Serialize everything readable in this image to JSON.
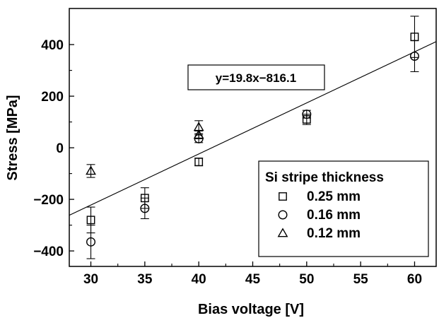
{
  "chart_data": {
    "type": "scatter",
    "xlabel": "Bias voltage [V]",
    "ylabel": "Stress [MPa]",
    "xlim": [
      28,
      62
    ],
    "ylim": [
      -460,
      540
    ],
    "xticks": [
      30,
      35,
      40,
      45,
      50,
      55,
      60
    ],
    "yticks": [
      -400,
      -200,
      0,
      200,
      400
    ],
    "grid": false,
    "legend": {
      "title": "Si stripe thickness",
      "placement": "bottom-right"
    },
    "series": [
      {
        "name": "0.25 mm",
        "marker": "square",
        "points": [
          {
            "x": 30,
            "y": -280,
            "err": 50
          },
          {
            "x": 35,
            "y": -195,
            "err": 40
          },
          {
            "x": 40,
            "y": -55,
            "err": 15
          },
          {
            "x": 50,
            "y": 110,
            "err": 20
          },
          {
            "x": 60,
            "y": 430,
            "err": 80
          }
        ]
      },
      {
        "name": "0.16 mm",
        "marker": "circle",
        "points": [
          {
            "x": 30,
            "y": -365,
            "err": 65
          },
          {
            "x": 35,
            "y": -235,
            "err": 40
          },
          {
            "x": 40,
            "y": 35,
            "err": 15
          },
          {
            "x": 50,
            "y": 130,
            "err": 15
          },
          {
            "x": 60,
            "y": 355,
            "err": 60
          }
        ]
      },
      {
        "name": "0.12 mm",
        "marker": "triangle",
        "points": [
          {
            "x": 30,
            "y": -90,
            "err": 25
          },
          {
            "x": 40,
            "y": 80,
            "err": 25
          },
          {
            "x": 40,
            "y": 50,
            "err": 15
          }
        ]
      }
    ],
    "fit": {
      "slope": 19.8,
      "intercept": -816.1,
      "label": "y=19.8x−816.1"
    }
  }
}
